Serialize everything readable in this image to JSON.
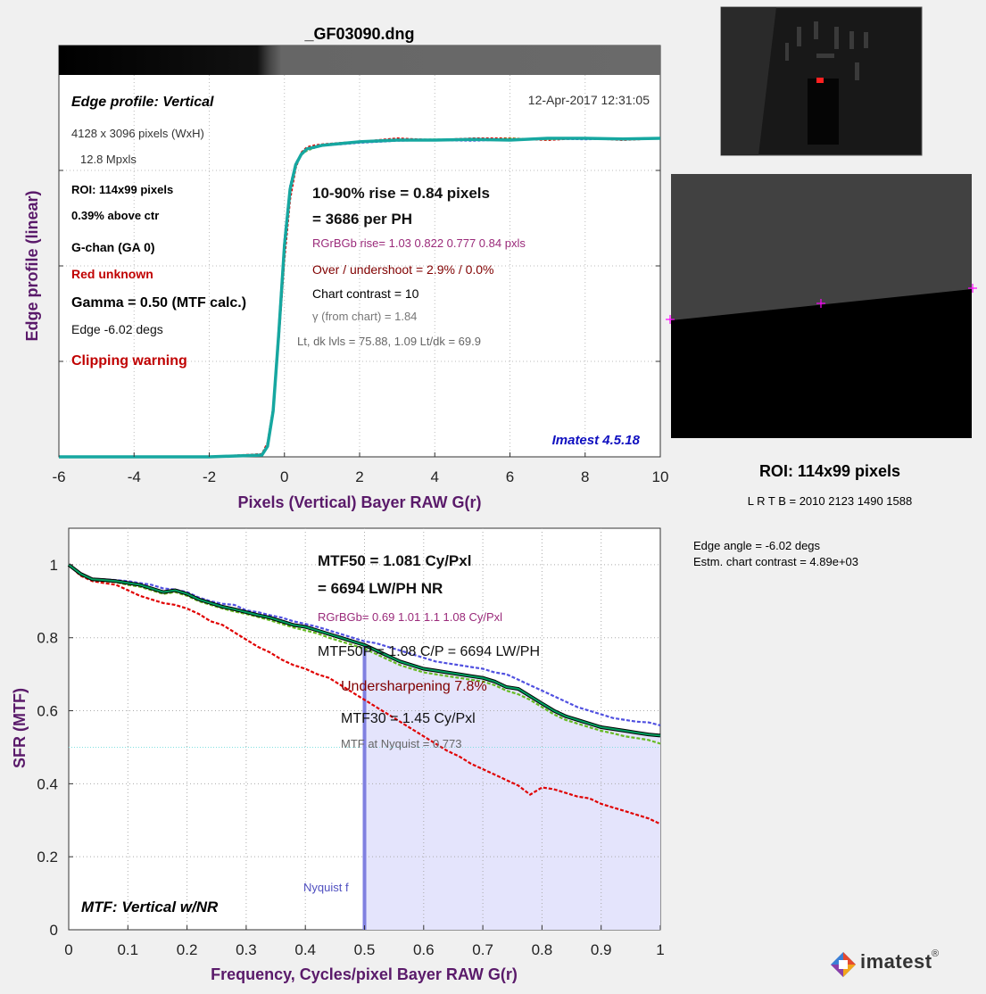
{
  "file_title": "_GF03090.dng",
  "edge_panel": {
    "title": "Edge profile: Vertical",
    "timestamp": "12-Apr-2017 12:31:05",
    "image_size": "4128 x 3096 pixels (WxH)",
    "megapixels": "12.8 Mpxls",
    "roi": "ROI:  114x99 pixels",
    "above_ctr": "0.39% above ctr",
    "channel": "G-chan (GA 0)",
    "red_unknown": "Red unknown",
    "gamma": "Gamma = 0.50 (MTF calc.)",
    "edge_angle": "Edge  -6.02 degs",
    "clipping": "Clipping warning",
    "rise": "10-90% rise = 0.84 pixels",
    "per_ph": "=   3686 per PH",
    "rgb_rise": "RGrBGb rise=   1.03   0.822   0.777    0.84 pxls",
    "overshoot": "Over / undershoot =  2.9% /  0.0%",
    "chart_contrast": "Chart contrast = 10",
    "gamma_from_chart": "γ (from chart) =  1.84",
    "levels": "Lt, dk lvls =  75.88,    1.09   Lt/dk =   69.9",
    "version": "Imatest 4.5.18"
  },
  "mtf_panel": {
    "mtf50": "MTF50 = 1.081 Cy/Pxl",
    "mtf50_lwph": "= 6694 LW/PH  NR",
    "rgb_mtf50": "RGrBGb= 0.69  1.01  1.1  1.08 Cy/Pxl",
    "mtf50p": "MTF50P = 1.08 C/P = 6694 LW/PH",
    "undersharpening": "Undersharpening  7.8%",
    "mtf30": "MTF30 = 1.45 Cy/Pxl",
    "nyquist_mtf": "MTF at Nyquist = 0.773",
    "nyquist_label": "Nyquist f",
    "title": "MTF: Vertical w/NR"
  },
  "side_panel": {
    "roi_title": "ROI:  114x99 pixels",
    "roi_coords": "L R  T B = 2010 2123  1490 1588",
    "edge_angle": "Edge angle = -6.02 degs",
    "chart_contrast": "Estm. chart contrast = 4.89e+03"
  },
  "logo": {
    "text": "imatest",
    "reg": "®"
  },
  "colors": {
    "axis_label": "#5a1a6a",
    "red_text": "#c00000",
    "magenta_text": "#9a2a7a",
    "dark_red_text": "#800000",
    "blue_text": "#1010c0",
    "green": "#00a060",
    "teal": "#16a7a0",
    "red_curve": "#e00000",
    "blue_curve": "#5050e0",
    "lime_curve": "#66bb22",
    "shade": "#e4e4fc"
  },
  "chart_data": [
    {
      "type": "line",
      "title": "Edge profile: Vertical",
      "xlabel": "Pixels (Vertical)   Bayer RAW G(r)",
      "ylabel": "Edge profile (linear)",
      "xlim": [
        -6,
        10
      ],
      "ylim": [
        0,
        1
      ],
      "xticks": [
        "-6",
        "-4",
        "-2",
        "0",
        "2",
        "4",
        "6",
        "8",
        "10"
      ],
      "grid": true,
      "series": [
        {
          "color": "teal",
          "x": [
            -6,
            -2,
            -0.6,
            -0.45,
            -0.3,
            -0.15,
            0,
            0.15,
            0.3,
            0.45,
            0.6,
            0.8,
            1,
            1.5,
            2,
            3,
            4,
            5,
            6,
            7,
            8,
            9,
            10
          ],
          "y": [
            0,
            0,
            0.005,
            0.03,
            0.13,
            0.35,
            0.6,
            0.76,
            0.83,
            0.86,
            0.875,
            0.88,
            0.885,
            0.89,
            0.895,
            0.9,
            0.9,
            0.902,
            0.9,
            0.905,
            0.905,
            0.903,
            0.905
          ]
        },
        {
          "color": "red",
          "x": [
            -6,
            -2,
            -0.6,
            -0.45,
            -0.3,
            -0.15,
            0,
            0.15,
            0.3,
            0.45,
            0.6,
            0.8,
            1,
            1.5,
            2,
            3,
            4,
            5,
            6,
            7,
            8,
            9,
            10
          ],
          "y": [
            0,
            0,
            0.008,
            0.04,
            0.14,
            0.33,
            0.56,
            0.73,
            0.82,
            0.865,
            0.88,
            0.885,
            0.888,
            0.892,
            0.895,
            0.905,
            0.9,
            0.905,
            0.905,
            0.9,
            0.906,
            0.9,
            0.905
          ]
        },
        {
          "color": "blue",
          "x": [
            -6,
            -2,
            -0.6,
            -0.45,
            -0.3,
            -0.15,
            0,
            0.15,
            0.3,
            0.45,
            0.6,
            0.8,
            1,
            1.5,
            2,
            3,
            4,
            5,
            6,
            7,
            8,
            9,
            10
          ],
          "y": [
            0,
            0,
            0.006,
            0.03,
            0.14,
            0.37,
            0.62,
            0.77,
            0.835,
            0.86,
            0.87,
            0.878,
            0.884,
            0.888,
            0.892,
            0.898,
            0.9,
            0.898,
            0.902,
            0.904,
            0.902,
            0.904,
            0.906
          ]
        },
        {
          "color": "lime",
          "x": [
            -6,
            -2,
            -0.6,
            -0.45,
            -0.3,
            -0.15,
            0,
            0.15,
            0.3,
            0.45,
            0.6,
            0.8,
            1,
            1.5,
            2,
            3,
            4,
            5,
            6,
            7,
            8,
            9,
            10
          ],
          "y": [
            0,
            0,
            0.005,
            0.03,
            0.13,
            0.36,
            0.61,
            0.765,
            0.83,
            0.858,
            0.87,
            0.878,
            0.884,
            0.89,
            0.895,
            0.9,
            0.902,
            0.9,
            0.904,
            0.902,
            0.906,
            0.904,
            0.906
          ]
        }
      ]
    },
    {
      "type": "line",
      "title": "MTF: Vertical w/NR",
      "xlabel": "Frequency, Cycles/pixel   Bayer RAW G(r)",
      "ylabel": "SFR (MTF)",
      "xlim": [
        0,
        1
      ],
      "ylim": [
        0,
        1.1
      ],
      "xticks": [
        "0",
        "0.1",
        "0.2",
        "0.3",
        "0.4",
        "0.5",
        "0.6",
        "0.7",
        "0.8",
        "0.9",
        "1"
      ],
      "yticks": [
        "0",
        "0.2",
        "0.4",
        "0.6",
        "0.8",
        "1"
      ],
      "grid": true,
      "nyquist": 0.5,
      "mtf50p_line": 0.5,
      "series": [
        {
          "color": "green",
          "x": [
            0,
            0.02,
            0.04,
            0.06,
            0.08,
            0.1,
            0.12,
            0.14,
            0.16,
            0.18,
            0.2,
            0.22,
            0.24,
            0.26,
            0.28,
            0.3,
            0.32,
            0.34,
            0.36,
            0.38,
            0.4,
            0.42,
            0.44,
            0.46,
            0.48,
            0.5,
            0.52,
            0.54,
            0.56,
            0.58,
            0.6,
            0.62,
            0.64,
            0.66,
            0.68,
            0.7,
            0.72,
            0.74,
            0.76,
            0.78,
            0.8,
            0.82,
            0.84,
            0.86,
            0.88,
            0.9,
            0.92,
            0.94,
            0.96,
            0.98,
            1
          ],
          "y": [
            1,
            0.975,
            0.96,
            0.958,
            0.955,
            0.95,
            0.945,
            0.935,
            0.925,
            0.93,
            0.92,
            0.905,
            0.895,
            0.885,
            0.878,
            0.87,
            0.862,
            0.855,
            0.845,
            0.835,
            0.83,
            0.82,
            0.81,
            0.8,
            0.79,
            0.78,
            0.765,
            0.75,
            0.735,
            0.725,
            0.715,
            0.71,
            0.705,
            0.7,
            0.695,
            0.69,
            0.68,
            0.665,
            0.66,
            0.64,
            0.62,
            0.6,
            0.585,
            0.575,
            0.565,
            0.555,
            0.55,
            0.545,
            0.54,
            0.535,
            0.532
          ]
        },
        {
          "color": "red",
          "x": [
            0,
            0.02,
            0.04,
            0.06,
            0.08,
            0.1,
            0.12,
            0.14,
            0.16,
            0.18,
            0.2,
            0.22,
            0.24,
            0.26,
            0.28,
            0.3,
            0.32,
            0.34,
            0.36,
            0.38,
            0.4,
            0.42,
            0.44,
            0.46,
            0.48,
            0.5,
            0.52,
            0.54,
            0.56,
            0.58,
            0.6,
            0.62,
            0.64,
            0.66,
            0.68,
            0.7,
            0.72,
            0.74,
            0.76,
            0.78,
            0.8,
            0.82,
            0.84,
            0.86,
            0.88,
            0.9,
            0.92,
            0.94,
            0.96,
            0.98,
            1
          ],
          "y": [
            1,
            0.97,
            0.955,
            0.95,
            0.945,
            0.93,
            0.915,
            0.905,
            0.895,
            0.89,
            0.88,
            0.865,
            0.845,
            0.835,
            0.815,
            0.795,
            0.775,
            0.76,
            0.74,
            0.725,
            0.715,
            0.7,
            0.69,
            0.67,
            0.65,
            0.63,
            0.61,
            0.59,
            0.57,
            0.55,
            0.53,
            0.51,
            0.49,
            0.475,
            0.455,
            0.44,
            0.425,
            0.41,
            0.395,
            0.37,
            0.39,
            0.385,
            0.375,
            0.365,
            0.36,
            0.345,
            0.335,
            0.325,
            0.315,
            0.305,
            0.29
          ]
        },
        {
          "color": "blue",
          "x": [
            0,
            0.02,
            0.04,
            0.06,
            0.08,
            0.1,
            0.12,
            0.14,
            0.16,
            0.18,
            0.2,
            0.22,
            0.24,
            0.26,
            0.28,
            0.3,
            0.32,
            0.34,
            0.36,
            0.38,
            0.4,
            0.42,
            0.44,
            0.46,
            0.48,
            0.5,
            0.52,
            0.54,
            0.56,
            0.58,
            0.6,
            0.62,
            0.64,
            0.66,
            0.68,
            0.7,
            0.72,
            0.74,
            0.76,
            0.78,
            0.8,
            0.82,
            0.84,
            0.86,
            0.88,
            0.9,
            0.92,
            0.94,
            0.96,
            0.98,
            1
          ],
          "y": [
            1,
            0.975,
            0.962,
            0.96,
            0.958,
            0.955,
            0.95,
            0.945,
            0.935,
            0.932,
            0.925,
            0.91,
            0.9,
            0.893,
            0.89,
            0.875,
            0.87,
            0.862,
            0.855,
            0.845,
            0.838,
            0.83,
            0.82,
            0.81,
            0.8,
            0.79,
            0.785,
            0.775,
            0.765,
            0.755,
            0.745,
            0.735,
            0.73,
            0.725,
            0.72,
            0.715,
            0.705,
            0.7,
            0.685,
            0.67,
            0.655,
            0.64,
            0.625,
            0.61,
            0.6,
            0.59,
            0.58,
            0.575,
            0.57,
            0.568,
            0.56
          ]
        },
        {
          "color": "lime",
          "x": [
            0,
            0.02,
            0.04,
            0.06,
            0.08,
            0.1,
            0.12,
            0.14,
            0.16,
            0.18,
            0.2,
            0.22,
            0.24,
            0.26,
            0.28,
            0.3,
            0.32,
            0.34,
            0.36,
            0.38,
            0.4,
            0.42,
            0.44,
            0.46,
            0.48,
            0.5,
            0.52,
            0.54,
            0.56,
            0.58,
            0.6,
            0.62,
            0.64,
            0.66,
            0.68,
            0.7,
            0.72,
            0.74,
            0.76,
            0.78,
            0.8,
            0.82,
            0.84,
            0.86,
            0.88,
            0.9,
            0.92,
            0.94,
            0.96,
            0.98,
            1
          ],
          "y": [
            1,
            0.972,
            0.958,
            0.955,
            0.952,
            0.945,
            0.94,
            0.93,
            0.92,
            0.925,
            0.915,
            0.9,
            0.89,
            0.88,
            0.872,
            0.865,
            0.857,
            0.848,
            0.838,
            0.828,
            0.82,
            0.812,
            0.8,
            0.79,
            0.78,
            0.77,
            0.755,
            0.74,
            0.725,
            0.715,
            0.705,
            0.7,
            0.695,
            0.69,
            0.685,
            0.68,
            0.67,
            0.655,
            0.645,
            0.63,
            0.61,
            0.59,
            0.575,
            0.565,
            0.555,
            0.545,
            0.538,
            0.53,
            0.525,
            0.52,
            0.51
          ]
        }
      ]
    }
  ]
}
